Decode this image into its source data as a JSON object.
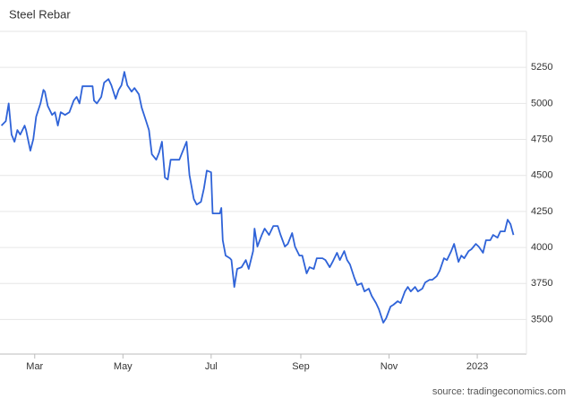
{
  "chart_data": {
    "type": "line",
    "title": "Steel Rebar",
    "source": "source: tradingeconomics.com",
    "x": [
      36,
      39,
      41,
      43,
      45,
      47,
      49,
      52,
      53,
      56,
      58,
      60,
      63,
      65,
      66,
      68,
      71,
      73,
      75,
      77,
      80,
      83,
      86,
      88,
      90,
      92,
      96,
      99,
      100,
      102,
      105,
      107,
      110,
      112,
      115,
      117,
      119,
      121,
      123,
      126,
      128,
      131,
      133,
      136,
      138,
      140,
      143,
      145,
      147,
      149,
      151,
      153,
      156,
      159,
      161,
      164,
      166,
      169,
      171,
      174,
      176,
      178,
      181,
      182,
      187,
      188,
      189,
      191,
      194,
      195,
      197,
      199,
      202,
      205,
      207,
      210,
      211,
      213,
      216,
      218,
      221,
      224,
      227,
      229,
      232,
      234,
      237,
      239,
      242,
      244,
      247,
      249,
      252,
      254,
      258,
      260,
      263,
      265,
      268,
      270,
      273,
      275,
      277,
      280,
      282,
      285,
      287,
      290,
      292,
      295,
      297,
      300,
      302,
      305,
      307,
      310,
      312,
      315,
      317,
      319,
      322,
      324,
      327,
      329,
      332,
      334,
      337,
      339,
      342,
      344,
      347,
      349,
      352,
      354,
      356,
      359,
      361,
      364,
      366,
      369,
      371,
      374,
      376,
      379,
      381,
      384,
      386,
      388,
      390
    ],
    "series": [
      {
        "name": "Steel Rebar",
        "color": "#2f63d8",
        "values": [
          4846,
          4877,
          5000,
          4784,
          4734,
          4815,
          4784,
          4846,
          4815,
          4672,
          4752,
          4908,
          5000,
          5094,
          5082,
          4983,
          4920,
          4939,
          4846,
          4939,
          4920,
          4939,
          5020,
          5045,
          5000,
          5119,
          5119,
          5119,
          5020,
          5000,
          5045,
          5144,
          5169,
          5126,
          5032,
          5094,
          5126,
          5219,
          5126,
          5082,
          5107,
          5063,
          4970,
          4877,
          4815,
          4647,
          4609,
          4659,
          4734,
          4485,
          4472,
          4609,
          4609,
          4609,
          4659,
          4734,
          4504,
          4336,
          4298,
          4317,
          4410,
          4534,
          4522,
          4236,
          4236,
          4274,
          4050,
          3944,
          3925,
          3913,
          3726,
          3851,
          3863,
          3913,
          3851,
          3975,
          4131,
          4006,
          4087,
          4131,
          4087,
          4149,
          4149,
          4087,
          4006,
          4025,
          4100,
          4006,
          3944,
          3944,
          3820,
          3863,
          3851,
          3925,
          3925,
          3913,
          3863,
          3900,
          3963,
          3913,
          3975,
          3913,
          3882,
          3789,
          3739,
          3751,
          3695,
          3714,
          3664,
          3614,
          3571,
          3478,
          3509,
          3590,
          3602,
          3627,
          3614,
          3695,
          3726,
          3695,
          3726,
          3695,
          3714,
          3757,
          3776,
          3776,
          3801,
          3838,
          3925,
          3913,
          3975,
          4025,
          3900,
          3944,
          3925,
          3975,
          3988,
          4025,
          4006,
          3963,
          4050,
          4050,
          4087,
          4068,
          4112,
          4112,
          4193,
          4162,
          4087
        ]
      }
    ],
    "xlim": [
      35,
      399
    ],
    "xticks": [
      {
        "value": 59,
        "label": "Mar"
      },
      {
        "value": 120,
        "label": "May"
      },
      {
        "value": 181,
        "label": "Jul"
      },
      {
        "value": 243,
        "label": "Sep"
      },
      {
        "value": 304,
        "label": "Nov"
      },
      {
        "value": 365,
        "label": "2023"
      }
    ],
    "ylim": [
      3260,
      5500
    ],
    "yticks": [
      3500,
      3750,
      4000,
      4250,
      4500,
      4750,
      5000,
      5250
    ],
    "grid": true
  }
}
